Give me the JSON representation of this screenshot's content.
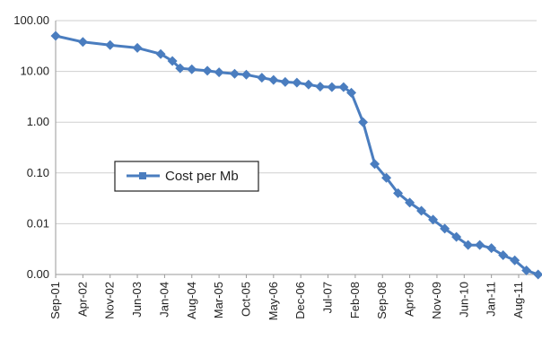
{
  "chart_data": {
    "type": "line",
    "scale": "log",
    "grid": true,
    "legend_position": "center-left",
    "ytick_labels": [
      "100.00",
      "10.00",
      "1.00",
      "0.10",
      "0.01",
      "0.00"
    ],
    "yticks": [
      100,
      10,
      1,
      0.1,
      0.01,
      0.001
    ],
    "ylim": [
      0.001,
      100
    ],
    "xtick_labels": [
      "Sep-01",
      "Apr-02",
      "Nov-02",
      "Jun-03",
      "Jan-04",
      "Aug-04",
      "Mar-05",
      "Oct-05",
      "May-06",
      "Dec-06",
      "Jul-07",
      "Feb-08",
      "Sep-08",
      "Apr-09",
      "Nov-09",
      "Jun-10",
      "Jan-11",
      "Aug-11"
    ],
    "series": [
      {
        "name": "Cost per Mb",
        "color": "#4a7dbf",
        "points": [
          {
            "x": "Sep-01",
            "y": 50
          },
          {
            "x": "Apr-02",
            "y": 38
          },
          {
            "x": "Nov-02",
            "y": 33
          },
          {
            "x": "Jun-03",
            "y": 29
          },
          {
            "x": "Dec-03",
            "y": 22
          },
          {
            "x": "Mar-04",
            "y": 16
          },
          {
            "x": "May-04",
            "y": 11.5
          },
          {
            "x": "Aug-04",
            "y": 11
          },
          {
            "x": "Dec-04",
            "y": 10.3
          },
          {
            "x": "Mar-05",
            "y": 9.6
          },
          {
            "x": "Jul-05",
            "y": 9
          },
          {
            "x": "Oct-05",
            "y": 8.6
          },
          {
            "x": "Feb-06",
            "y": 7.5
          },
          {
            "x": "May-06",
            "y": 6.8
          },
          {
            "x": "Aug-06",
            "y": 6.2
          },
          {
            "x": "Nov-06",
            "y": 6
          },
          {
            "x": "Feb-07",
            "y": 5.5
          },
          {
            "x": "May-07",
            "y": 5
          },
          {
            "x": "Aug-07",
            "y": 4.9
          },
          {
            "x": "Nov-07",
            "y": 4.9
          },
          {
            "x": "Jan-08",
            "y": 3.8
          },
          {
            "x": "Apr-08",
            "y": 1.0
          },
          {
            "x": "Jul-08",
            "y": 0.15
          },
          {
            "x": "Oct-08",
            "y": 0.08
          },
          {
            "x": "Jan-09",
            "y": 0.04
          },
          {
            "x": "Apr-09",
            "y": 0.026
          },
          {
            "x": "Jul-09",
            "y": 0.018
          },
          {
            "x": "Oct-09",
            "y": 0.012
          },
          {
            "x": "Jan-10",
            "y": 0.008
          },
          {
            "x": "Apr-10",
            "y": 0.0055
          },
          {
            "x": "Jul-10",
            "y": 0.0038
          },
          {
            "x": "Oct-10",
            "y": 0.0038
          },
          {
            "x": "Jan-11",
            "y": 0.0033
          },
          {
            "x": "Apr-11",
            "y": 0.0024
          },
          {
            "x": "Jul-11",
            "y": 0.0019
          },
          {
            "x": "Oct-11",
            "y": 0.0012
          },
          {
            "x": "Jan-12",
            "y": 0.001
          }
        ]
      }
    ]
  }
}
